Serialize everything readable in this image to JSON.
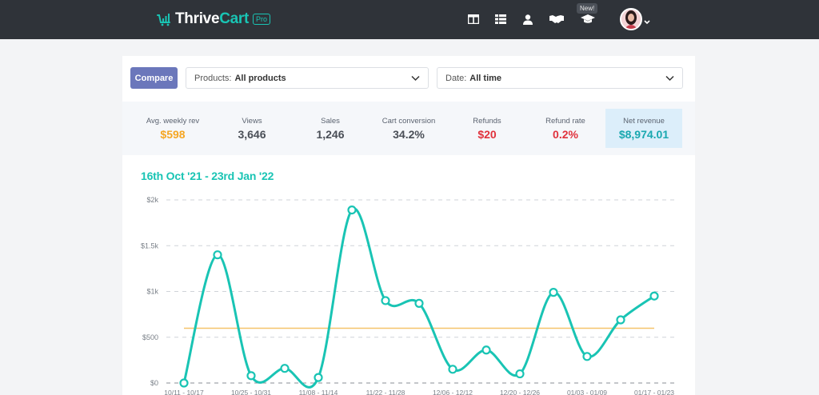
{
  "header": {
    "logo_main": "Thrive",
    "logo_accent": "Cart",
    "logo_badge": "Pro",
    "new_badge": "New!"
  },
  "toolbar": {
    "compare_label": "Compare",
    "products_label": "Products:",
    "products_value": "All products",
    "date_label": "Date:",
    "date_value": "All time"
  },
  "stats": [
    {
      "label": "Avg. weekly rev",
      "value": "$598",
      "color": "#f5a623"
    },
    {
      "label": "Views",
      "value": "3,646",
      "color": "#4a4f57"
    },
    {
      "label": "Sales",
      "value": "1,246",
      "color": "#4a4f57"
    },
    {
      "label": "Cart conversion",
      "value": "34.2%",
      "color": "#4a4f57"
    },
    {
      "label": "Refunds",
      "value": "$20",
      "color": "#e0323c"
    },
    {
      "label": "Refund rate",
      "value": "0.2%",
      "color": "#e0323c"
    },
    {
      "label": "Net revenue",
      "value": "$8,974.01",
      "color": "#1aa8b0"
    }
  ],
  "range_title": "16th Oct '21 - 23rd Jan '22",
  "chart_data": {
    "type": "line",
    "x": [
      "10/11 - 10/17",
      "10/18 - 10/24",
      "10/25 - 10/31",
      "11/01 - 11/07",
      "11/08 - 11/14",
      "11/15 - 11/21",
      "11/22 - 11/28",
      "11/29 - 12/05",
      "12/06 - 12/12",
      "12/13 - 12/19",
      "12/20 - 12/26",
      "12/27 - 01/02",
      "01/03 - 01/09",
      "01/10 - 01/16",
      "01/17 - 01/23"
    ],
    "x_tick_labels": [
      "10/11 - 10/17",
      "10/25 - 10/31",
      "11/08 - 11/14",
      "11/22 - 11/28",
      "12/06 - 12/12",
      "12/20 - 12/26",
      "01/03 - 01/09",
      "01/17 - 01/23"
    ],
    "series": [
      {
        "values": [
          0,
          1400,
          80,
          160,
          60,
          1890,
          900,
          870,
          150,
          360,
          100,
          990,
          290,
          690,
          950
        ],
        "color": "#19c4b4"
      }
    ],
    "average_line": 598,
    "average_color": "#f5c36b",
    "y_ticks": [
      "$0",
      "$500",
      "$1k",
      "$1.5k",
      "$2k"
    ],
    "ylim": [
      0,
      2000
    ],
    "grid": true
  }
}
